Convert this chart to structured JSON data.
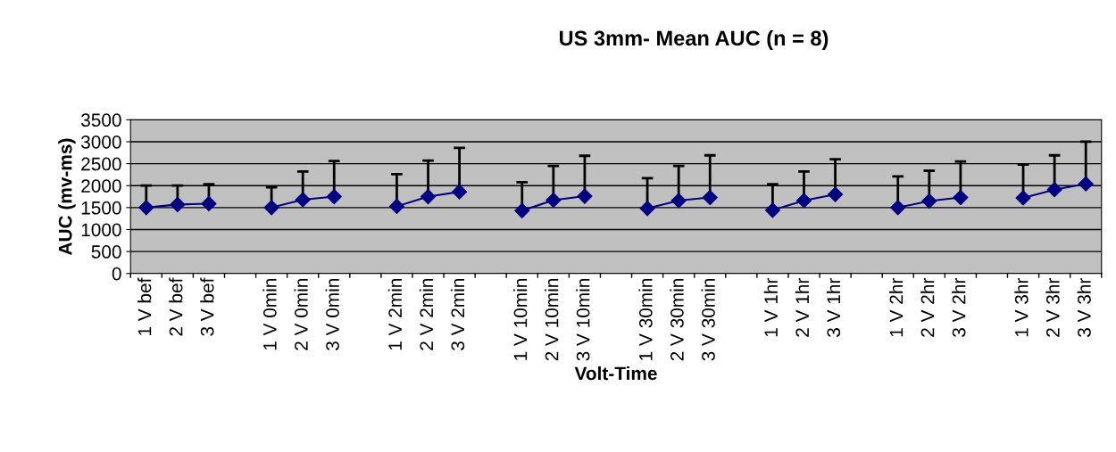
{
  "chart_data": {
    "type": "line",
    "title": "US 3mm- Mean AUC (n = 8)",
    "xlabel": "Volt-Time",
    "ylabel": "AUC (mv-ms)",
    "categories": [
      "1 V bef",
      "2 V bef",
      "3 V bef",
      null,
      "1 V 0min",
      "2 V 0min",
      "3 V 0min",
      null,
      "1 V 2min",
      "2 V 2min",
      "3 V 2min",
      null,
      "1 V 10min",
      "2 V 10min",
      "3 V 10min",
      null,
      "1 V 30min",
      "2 V 30min",
      "3 V 30min",
      null,
      "1 V 1hr",
      "2 V 1hr",
      "3 V 1hr",
      null,
      "1 V 2hr",
      "2 V 2hr",
      "3 V 2hr",
      null,
      "1 V 3hr",
      "2 V 3hr",
      "3 V 3hr"
    ],
    "series": [
      {
        "color": "#000080",
        "values": [
          1500,
          1570,
          1590,
          null,
          1500,
          1680,
          1750,
          null,
          1530,
          1750,
          1860,
          null,
          1430,
          1670,
          1760,
          null,
          1480,
          1660,
          1730,
          null,
          1440,
          1660,
          1800,
          null,
          1500,
          1650,
          1730,
          null,
          1720,
          1910,
          2040
        ],
        "errors": [
          [
            1500,
            2000
          ],
          [
            1570,
            2000
          ],
          [
            1590,
            2030
          ],
          null,
          [
            1500,
            1960
          ],
          [
            1680,
            2320
          ],
          [
            1750,
            2560
          ],
          null,
          [
            1530,
            2260
          ],
          [
            1750,
            2570
          ],
          [
            1860,
            2860
          ],
          null,
          [
            1430,
            2080
          ],
          [
            1670,
            2450
          ],
          [
            1760,
            2680
          ],
          null,
          [
            1480,
            2170
          ],
          [
            1660,
            2450
          ],
          [
            1730,
            2690
          ],
          null,
          [
            1440,
            2030
          ],
          [
            1660,
            2320
          ],
          [
            1800,
            2600
          ],
          null,
          [
            1500,
            2210
          ],
          [
            1650,
            2340
          ],
          [
            1730,
            2550
          ],
          null,
          [
            1720,
            2480
          ],
          [
            1910,
            2690
          ],
          [
            2040,
            3000
          ]
        ]
      }
    ],
    "ylim": [
      0,
      3500
    ],
    "yticks": [
      0,
      500,
      1000,
      1500,
      2000,
      2500,
      3000,
      3500
    ],
    "grid": "y",
    "marker": "diamond",
    "line_style": "solid"
  }
}
